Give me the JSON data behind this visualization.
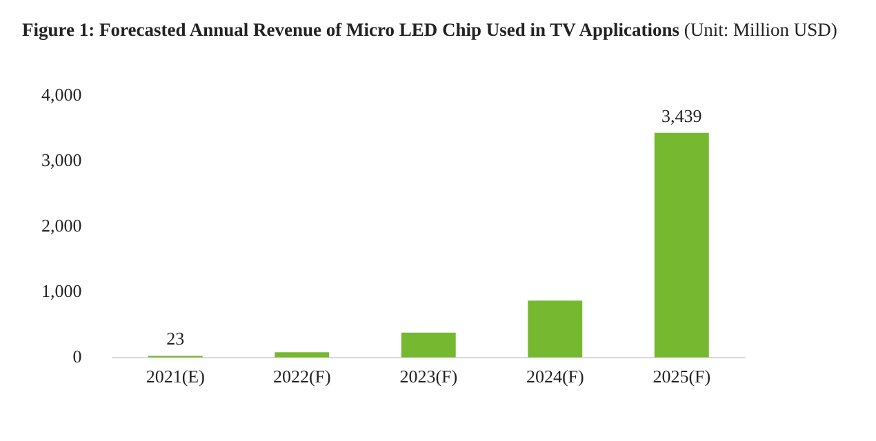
{
  "chart_data": {
    "type": "bar",
    "title": "Figure 1: Forecasted Annual Revenue of Micro LED Chip Used in TV Applications",
    "subtitle": "(Unit: Million USD)",
    "categories": [
      "2021(E)",
      "2022(F)",
      "2023(F)",
      "2024(F)",
      "2025(F)"
    ],
    "values": [
      23,
      80,
      380,
      870,
      3439
    ],
    "value_labels": [
      "23",
      null,
      null,
      null,
      "3,439"
    ],
    "color": "#76b82f",
    "ylim": [
      0,
      4000
    ],
    "yticks": [
      0,
      {
        "value": 1000,
        "label": "1,000"
      },
      {
        "value": 2000,
        "label": "2,000"
      },
      {
        "value": 3000,
        "label": "3,000"
      },
      {
        "value": 4000,
        "label": "4,000"
      }
    ],
    "grid": false,
    "legend": false
  }
}
